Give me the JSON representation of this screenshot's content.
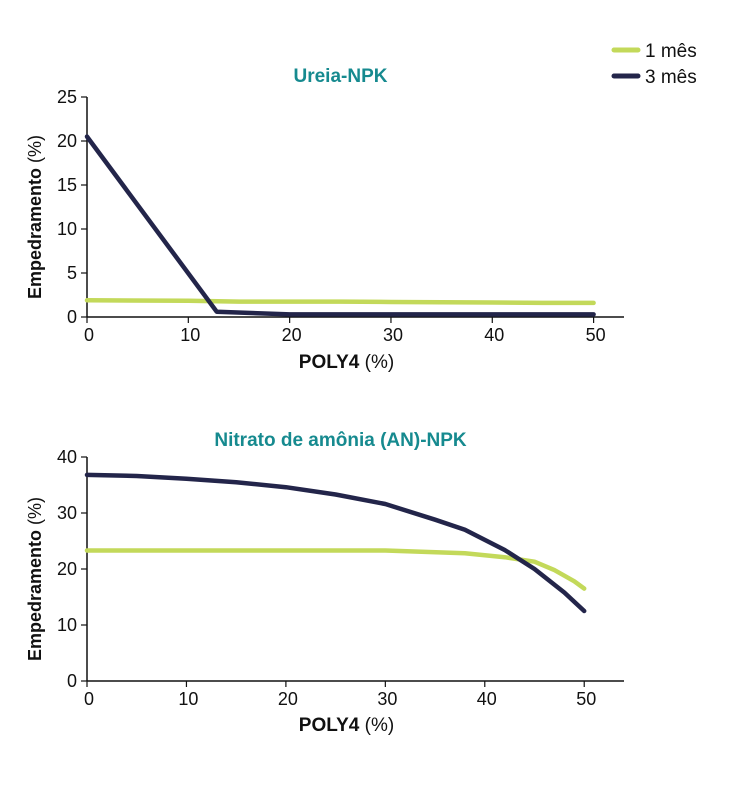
{
  "legend": {
    "items": [
      {
        "label": "1 mês",
        "color": "#c3d95a"
      },
      {
        "label": "3 mês",
        "color": "#23254a"
      }
    ]
  },
  "colors": {
    "title": "#168a8f",
    "axis": "#111111"
  },
  "chart_data": [
    {
      "type": "line",
      "title": "Ureia-NPK",
      "xlabel_bold": "POLY4",
      "xlabel_rest": " (%)",
      "ylabel_bold": "Empedramento",
      "ylabel_rest": " (%)",
      "xlim": [
        0,
        53
      ],
      "ylim": [
        0,
        25
      ],
      "xticks": [
        0,
        10,
        20,
        30,
        40,
        50
      ],
      "yticks": [
        0,
        5,
        10,
        15,
        20,
        25
      ],
      "series": [
        {
          "name": "1 mês",
          "color": "#c3d95a",
          "x": [
            0,
            10,
            15,
            25,
            30,
            40,
            45,
            50
          ],
          "y": [
            1.9,
            1.85,
            1.75,
            1.75,
            1.7,
            1.65,
            1.6,
            1.6
          ]
        },
        {
          "name": "3 mês",
          "color": "#23254a",
          "x": [
            0,
            12.8,
            20,
            30,
            40,
            50
          ],
          "y": [
            20.5,
            0.6,
            0.3,
            0.3,
            0.3,
            0.3
          ]
        }
      ]
    },
    {
      "type": "line",
      "title": "Nitrato de amônia (AN)-NPK",
      "xlabel_bold": "POLY4",
      "xlabel_rest": " (%)",
      "ylabel_bold": "Empedramento",
      "ylabel_rest": " (%)",
      "xlim": [
        0,
        54
      ],
      "ylim": [
        0,
        40
      ],
      "xticks": [
        0,
        10,
        20,
        30,
        40,
        50
      ],
      "yticks": [
        0,
        10,
        20,
        30,
        40
      ],
      "series": [
        {
          "name": "1 mês",
          "color": "#c3d95a",
          "x": [
            0,
            10,
            20,
            30,
            38,
            42,
            45,
            47,
            49,
            50
          ],
          "y": [
            23.3,
            23.3,
            23.3,
            23.3,
            22.8,
            22.1,
            21.3,
            19.8,
            17.8,
            16.5
          ]
        },
        {
          "name": "3 mês",
          "color": "#23254a",
          "x": [
            0,
            5,
            10,
            15,
            20,
            25,
            30,
            35,
            38,
            42,
            45,
            48,
            50
          ],
          "y": [
            36.8,
            36.6,
            36.1,
            35.5,
            34.6,
            33.3,
            31.6,
            28.8,
            27.0,
            23.4,
            20.0,
            15.8,
            12.5
          ]
        }
      ]
    }
  ]
}
